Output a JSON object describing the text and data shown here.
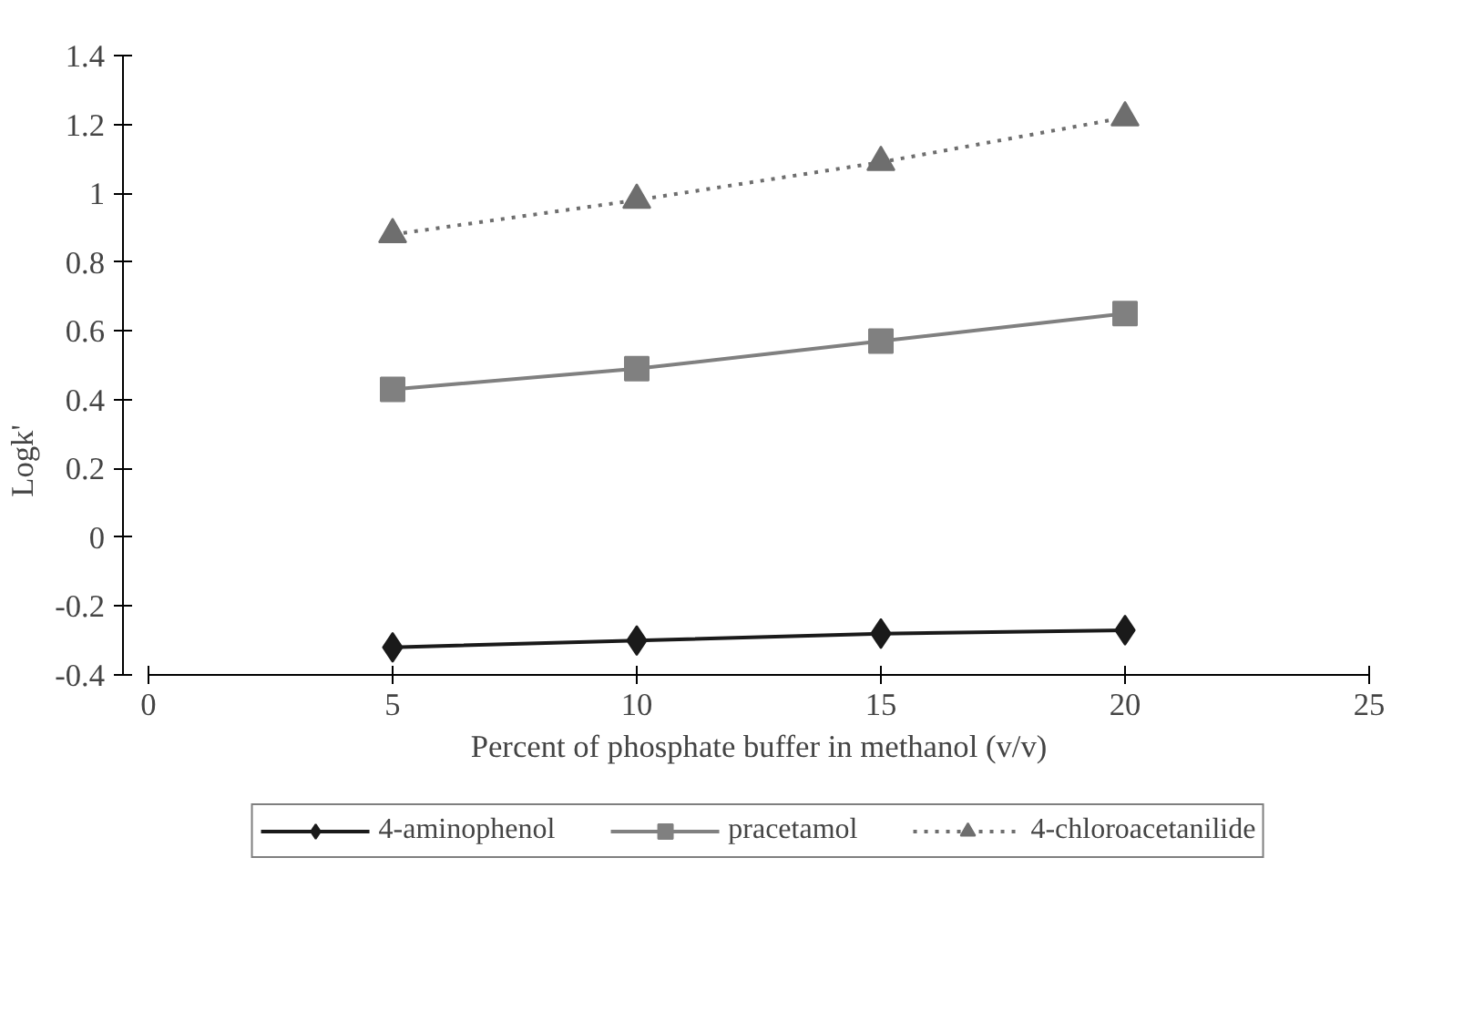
{
  "chart_data": {
    "type": "line",
    "xlabel": "Percent of phosphate buffer in methanol (v/v)",
    "ylabel": "Logk'",
    "x": [
      5,
      10,
      15,
      20
    ],
    "series": [
      {
        "name": "4-aminophenol",
        "color": "#1a1a1a",
        "values": [
          -0.32,
          -0.3,
          -0.28,
          -0.27
        ],
        "marker": "diamond",
        "line_style": "solid"
      },
      {
        "name": "pracetamol",
        "color": "#808080",
        "values": [
          0.43,
          0.49,
          0.57,
          0.65
        ],
        "marker": "square",
        "line_style": "solid"
      },
      {
        "name": "4-chloroacetanilide",
        "color": "#6e6e6e",
        "values": [
          0.88,
          0.98,
          1.09,
          1.22
        ],
        "marker": "triangle",
        "line_style": "dotted"
      }
    ],
    "xlim": [
      0,
      25
    ],
    "xticks": [
      0,
      5,
      10,
      15,
      20,
      25
    ],
    "ylim": [
      -0.4,
      1.4
    ],
    "yticks": [
      -0.4,
      -0.2,
      0,
      0.2,
      0.4,
      0.6,
      0.8,
      1,
      1.2,
      1.4
    ],
    "grid": false,
    "legend": "bottom"
  }
}
